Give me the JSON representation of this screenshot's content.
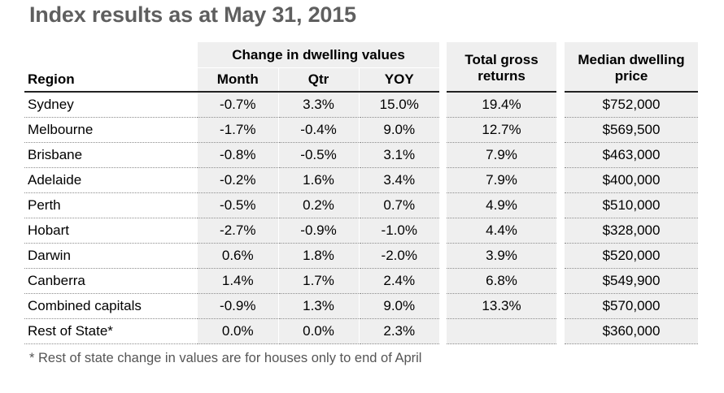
{
  "title": "Index results as at May 31, 2015",
  "headers": {
    "region": "Region",
    "change_group": "Change in dwelling values",
    "month": "Month",
    "qtr": "Qtr",
    "yoy": "YOY",
    "total_gross_l1": "Total gross",
    "total_gross_l2": "returns",
    "median_l1": "Median dwelling",
    "median_l2": "price"
  },
  "chart_data": {
    "type": "table",
    "title": "Index results as at May 31, 2015",
    "columns": [
      "Region",
      "Month",
      "Qtr",
      "YOY",
      "Total gross returns",
      "Median dwelling price"
    ],
    "rows": [
      [
        "Sydney",
        "-0.7%",
        "3.3%",
        "15.0%",
        "19.4%",
        "$752,000"
      ],
      [
        "Melbourne",
        "-1.7%",
        "-0.4%",
        "9.0%",
        "12.7%",
        "$569,500"
      ],
      [
        "Brisbane",
        "-0.8%",
        "-0.5%",
        "3.1%",
        "7.9%",
        "$463,000"
      ],
      [
        "Adelaide",
        "-0.2%",
        "1.6%",
        "3.4%",
        "7.9%",
        "$400,000"
      ],
      [
        "Perth",
        "-0.5%",
        "0.2%",
        "0.7%",
        "4.9%",
        "$510,000"
      ],
      [
        "Hobart",
        "-2.7%",
        "-0.9%",
        "-1.0%",
        "4.4%",
        "$328,000"
      ],
      [
        "Darwin",
        "0.6%",
        "1.8%",
        "-2.0%",
        "3.9%",
        "$520,000"
      ],
      [
        "Canberra",
        "1.4%",
        "1.7%",
        "2.4%",
        "6.8%",
        "$549,900"
      ],
      [
        "Combined capitals",
        "-0.9%",
        "1.3%",
        "9.0%",
        "13.3%",
        "$570,000"
      ],
      [
        "Rest of State*",
        "0.0%",
        "0.0%",
        "2.3%",
        "",
        "$360,000"
      ]
    ]
  },
  "footnote": "* Rest of state change in values are for houses only to end of April"
}
